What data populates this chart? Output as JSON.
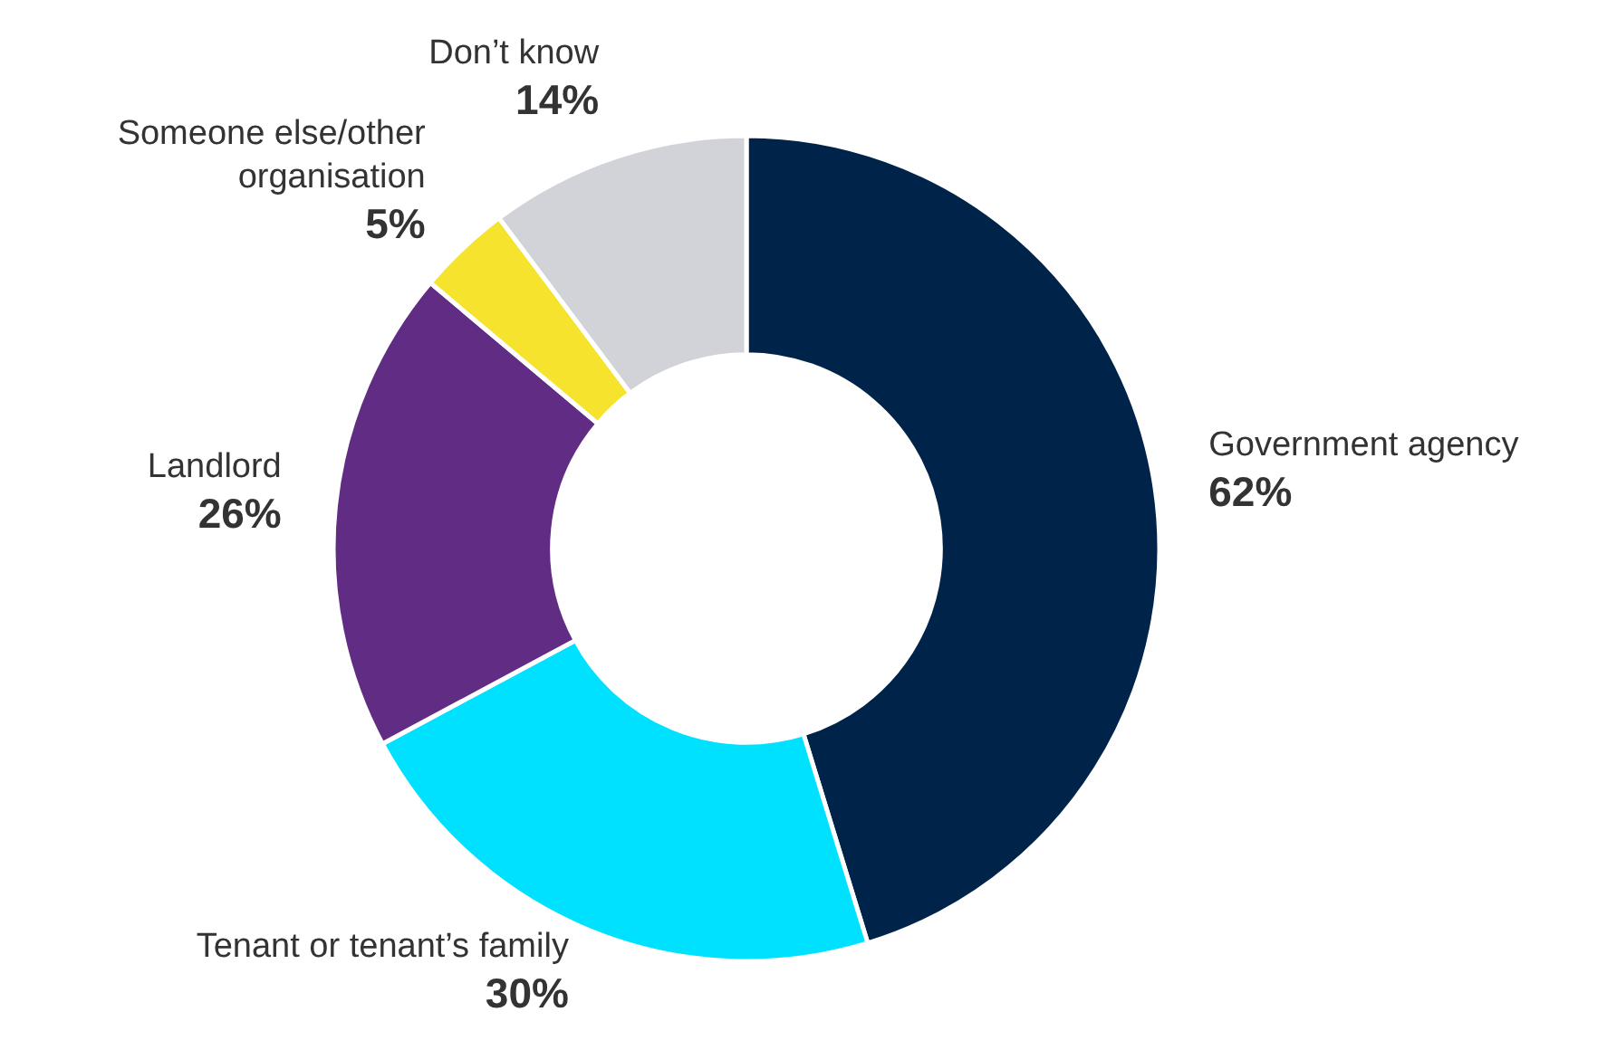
{
  "chart_data": {
    "type": "donut",
    "categories": [
      "Government agency",
      "Tenant or tenant’s family",
      "Landlord",
      "Someone else/other organisation",
      "Don’t know"
    ],
    "values": [
      62,
      30,
      26,
      5,
      14
    ],
    "value_labels": [
      "62%",
      "30%",
      "26%",
      "5%",
      "14%"
    ],
    "colors": [
      "#00234a",
      "#00e1ff",
      "#612c84",
      "#f5e32e",
      "#d1d3d8"
    ],
    "legend": false
  }
}
